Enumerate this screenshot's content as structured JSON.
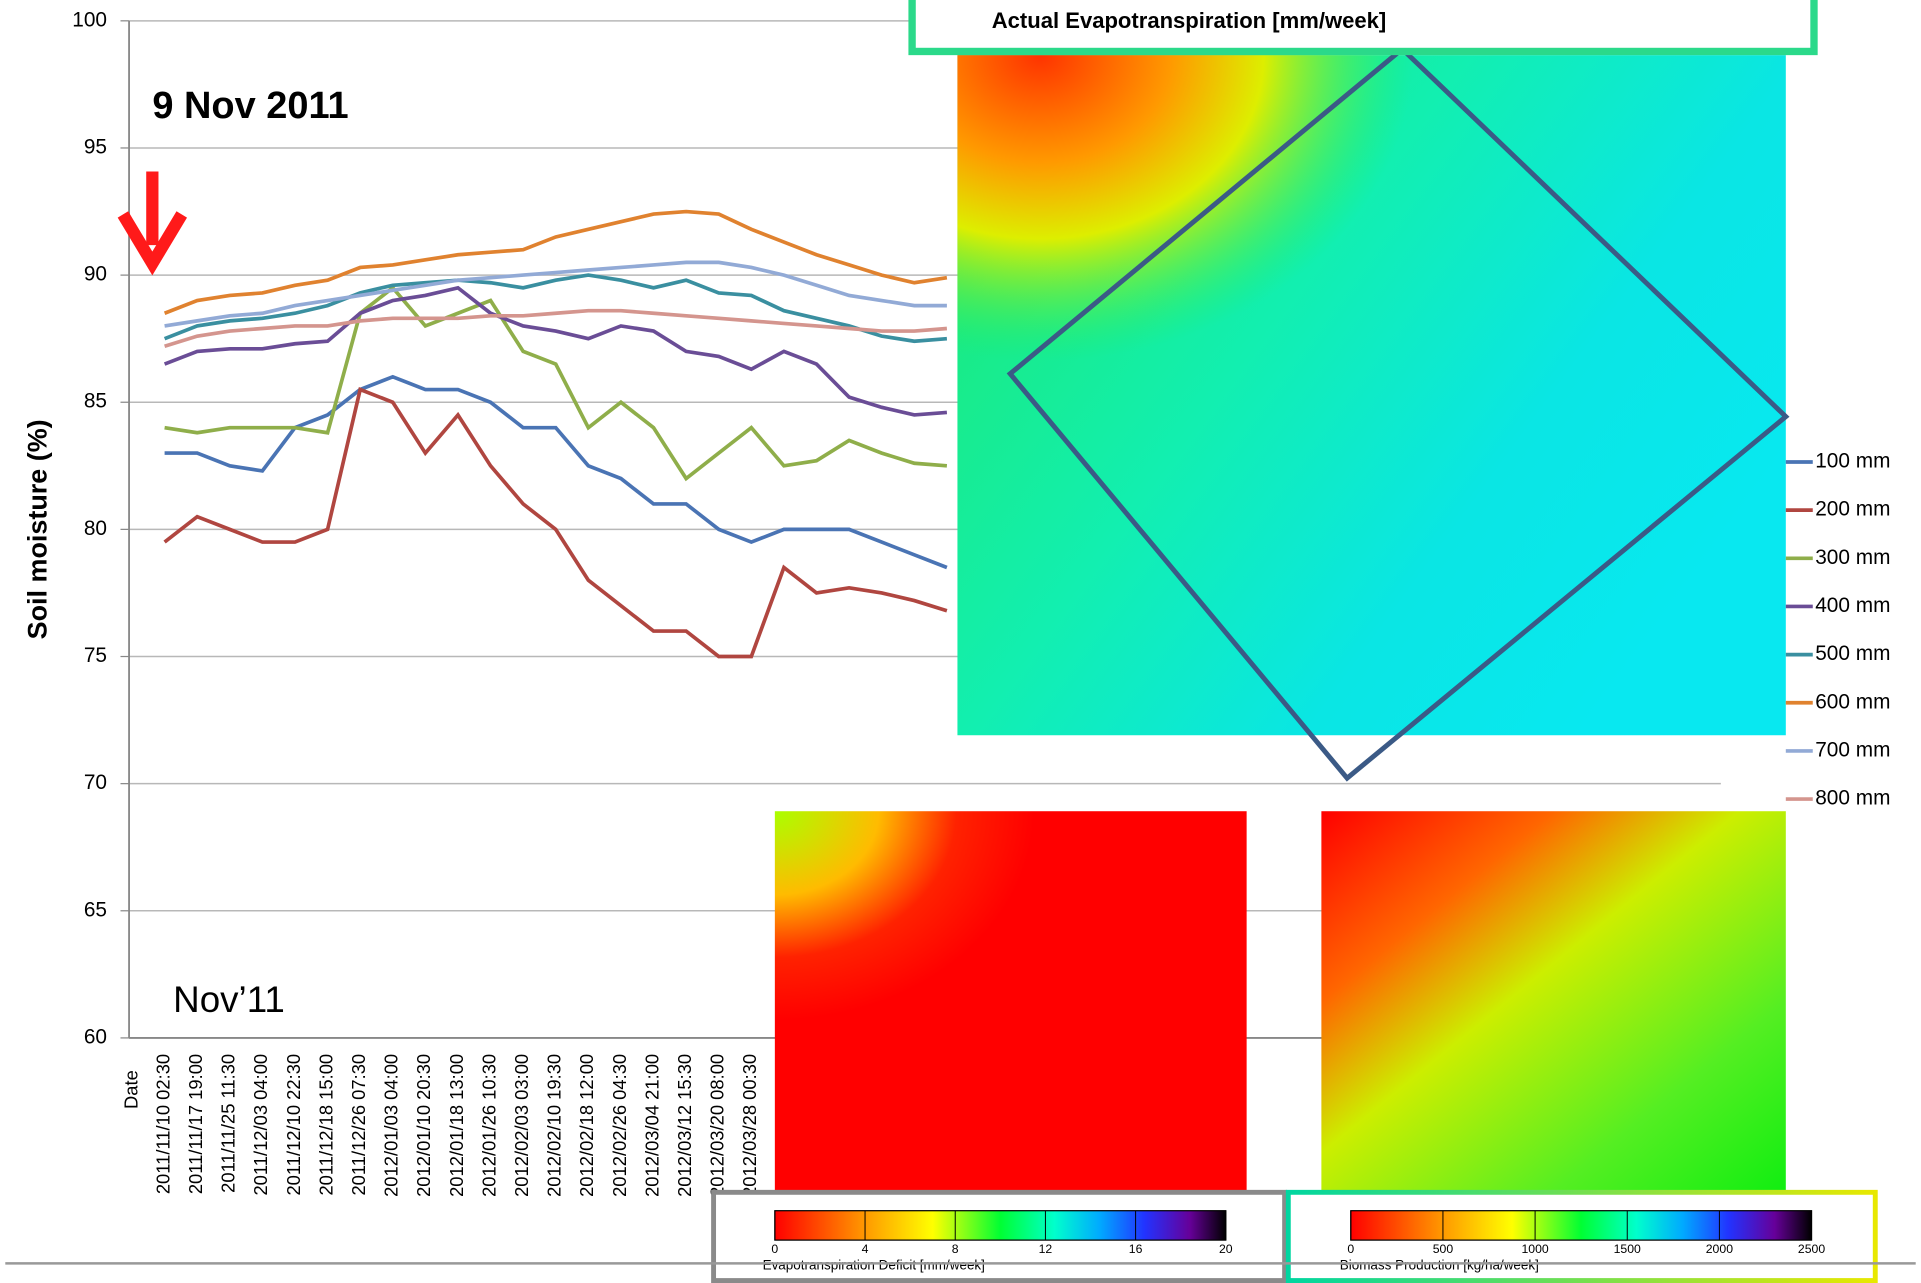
{
  "chart_data": {
    "type": "line",
    "y_label": "Soil moisture (%)",
    "x_label": "Date",
    "annotations": [
      "9 Nov 2011",
      "Nov’11"
    ],
    "categories": [
      "2011/11/10 02:30",
      "2011/11/17 19:00",
      "2011/11/25 11:30",
      "2011/12/03 04:00",
      "2011/12/10 22:30",
      "2011/12/18 15:00",
      "2011/12/26 07:30",
      "2012/01/03 04:00",
      "2012/01/10 20:30",
      "2012/01/18 13:00",
      "2012/01/26 10:30",
      "2012/02/03 03:00",
      "2012/02/10 19:30",
      "2012/02/18 12:00",
      "2012/02/26 04:30",
      "2012/03/04 21:00",
      "2012/03/12 15:30",
      "2012/03/20 08:00",
      "2012/03/28 00:30",
      null,
      null,
      null,
      null,
      null,
      null
    ],
    "series": [
      {
        "name": "100 mm",
        "color": "#4a74b4",
        "values": [
          83,
          83,
          82.5,
          82.3,
          84,
          84.5,
          85.5,
          86,
          85.5,
          85.5,
          85,
          84,
          84,
          82.5,
          82,
          81,
          81,
          80,
          79.5,
          80,
          80,
          80,
          79.5,
          79,
          78.5
        ]
      },
      {
        "name": "200 mm",
        "color": "#b04640",
        "values": [
          79.5,
          80.5,
          80,
          79.5,
          79.5,
          80,
          85.5,
          85,
          83,
          84.5,
          82.5,
          81,
          80,
          78,
          77,
          76,
          76,
          75,
          75,
          78.5,
          77.5,
          77.7,
          77.5,
          77.2,
          76.8
        ]
      },
      {
        "name": "300 mm",
        "color": "#8fae4a",
        "values": [
          84,
          83.8,
          84,
          84,
          84,
          83.8,
          88.5,
          89.5,
          88,
          88.5,
          89,
          87,
          86.5,
          84,
          85,
          84,
          82,
          83,
          84,
          82.5,
          82.7,
          83.5,
          83,
          82.6,
          82.5
        ]
      },
      {
        "name": "400 mm",
        "color": "#6a4d96",
        "values": [
          86.5,
          87,
          87.1,
          87.1,
          87.3,
          87.4,
          88.5,
          89,
          89.2,
          89.5,
          88.5,
          88,
          87.8,
          87.5,
          88,
          87.8,
          87,
          86.8,
          86.3,
          87,
          86.5,
          85.2,
          84.8,
          84.5,
          84.6
        ]
      },
      {
        "name": "500 mm",
        "color": "#3a8fa0",
        "values": [
          87.5,
          88,
          88.2,
          88.3,
          88.5,
          88.8,
          89.3,
          89.6,
          89.7,
          89.8,
          89.7,
          89.5,
          89.8,
          90,
          89.8,
          89.5,
          89.8,
          89.3,
          89.2,
          88.6,
          88.3,
          88,
          87.6,
          87.4,
          87.5
        ]
      },
      {
        "name": "600 mm",
        "color": "#e0822f",
        "values": [
          88.5,
          89,
          89.2,
          89.3,
          89.6,
          89.8,
          90.3,
          90.4,
          90.6,
          90.8,
          90.9,
          91,
          91.5,
          91.8,
          92.1,
          92.4,
          92.5,
          92.4,
          91.8,
          91.3,
          90.8,
          90.4,
          90,
          89.7,
          89.9
        ]
      },
      {
        "name": "700 mm",
        "color": "#92aad6",
        "values": [
          88,
          88.2,
          88.4,
          88.5,
          88.8,
          89,
          89.2,
          89.4,
          89.6,
          89.8,
          89.9,
          90,
          90.1,
          90.2,
          90.3,
          90.4,
          90.5,
          90.5,
          90.3,
          90,
          89.6,
          89.2,
          89,
          88.8,
          88.8
        ]
      },
      {
        "name": "800 mm",
        "color": "#d4958e",
        "values": [
          87.2,
          87.6,
          87.8,
          87.9,
          88,
          88,
          88.2,
          88.3,
          88.3,
          88.3,
          88.4,
          88.4,
          88.5,
          88.6,
          88.6,
          88.5,
          88.4,
          88.3,
          88.2,
          88.1,
          88,
          87.9,
          87.8,
          87.8,
          87.9
        ]
      }
    ],
    "ylim": [
      60,
      100
    ],
    "yticks": [
      60,
      65,
      70,
      75,
      80,
      85,
      90,
      95,
      100
    ],
    "grid": true,
    "legend": "right"
  },
  "insets": [
    {
      "title": "Actual Evapotranspiration [mm/week]"
    },
    {
      "title": "Evapotranspiration Deficit [mm/week]",
      "ticks": [
        0,
        4,
        8,
        12,
        16,
        20
      ]
    },
    {
      "title": "Biomass Production [kg/ha/week]",
      "ticks": [
        0,
        500,
        1000,
        1500,
        2000,
        2500
      ]
    }
  ]
}
